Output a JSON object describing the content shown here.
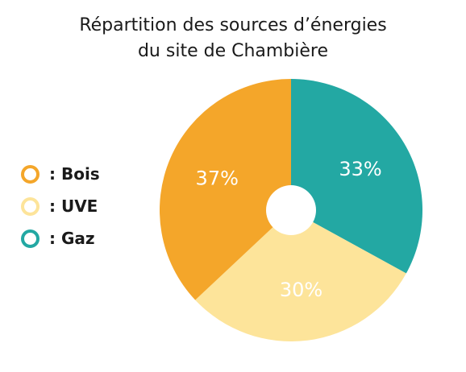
{
  "chart_data": {
    "type": "pie",
    "title_lines": [
      "Répartition des sources d’énergies",
      "du site de Chambière"
    ],
    "legend_position": "left",
    "slices": [
      {
        "name": "Bois",
        "legend_label": ": Bois",
        "value": 37,
        "label": "37%",
        "color": "#f4a62a"
      },
      {
        "name": "UVE",
        "legend_label": ": UVE",
        "value": 30,
        "label": "30%",
        "color": "#fde49a"
      },
      {
        "name": "Gaz",
        "legend_label": ": Gaz",
        "value": 33,
        "label": "33%",
        "color": "#23a8a3"
      }
    ]
  }
}
